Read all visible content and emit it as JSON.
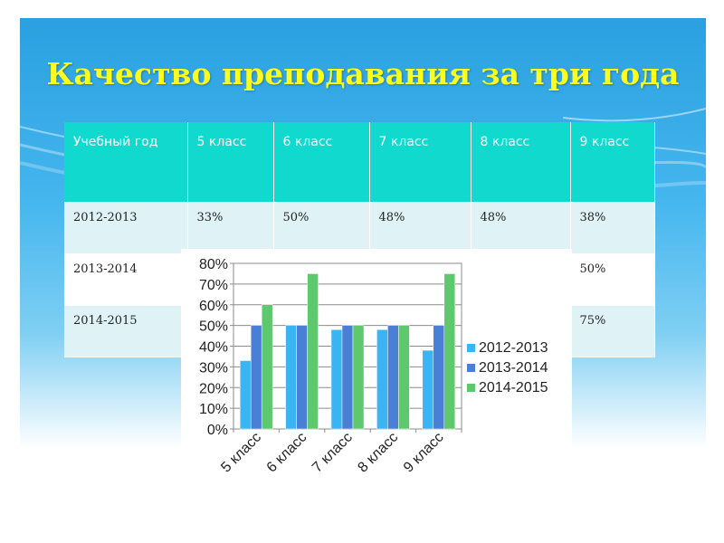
{
  "title": "Качество преподавания за три года",
  "table": {
    "headers": [
      "Учебный год",
      "5 класс",
      "6 класс",
      "7 класс",
      "8 класс",
      "9 класс"
    ],
    "rows": [
      [
        "2012-2013",
        "33%",
        "50%",
        "48%",
        "48%",
        "38%"
      ],
      [
        "2013-2014",
        "",
        "",
        "",
        "",
        "50%"
      ],
      [
        "2014-2015",
        "",
        "",
        "",
        "",
        "75%"
      ]
    ]
  },
  "chart_data": {
    "type": "bar",
    "categories": [
      "5 класс",
      "6 класс",
      "7 класс",
      "8 класс",
      "9 класс"
    ],
    "series": [
      {
        "name": "2012-2013",
        "values": [
          33,
          50,
          48,
          48,
          38
        ],
        "color": "#3ab4f2"
      },
      {
        "name": "2013-2014",
        "values": [
          50,
          50,
          50,
          50,
          50
        ],
        "color": "#4a7fd6"
      },
      {
        "name": "2014-2015",
        "values": [
          60,
          75,
          50,
          50,
          75
        ],
        "color": "#5ec86e"
      }
    ],
    "ylim": [
      0,
      80
    ],
    "yticks": [
      "0%",
      "10%",
      "20%",
      "30%",
      "40%",
      "50%",
      "60%",
      "70%",
      "80%"
    ],
    "grid": true,
    "legend": "right"
  }
}
